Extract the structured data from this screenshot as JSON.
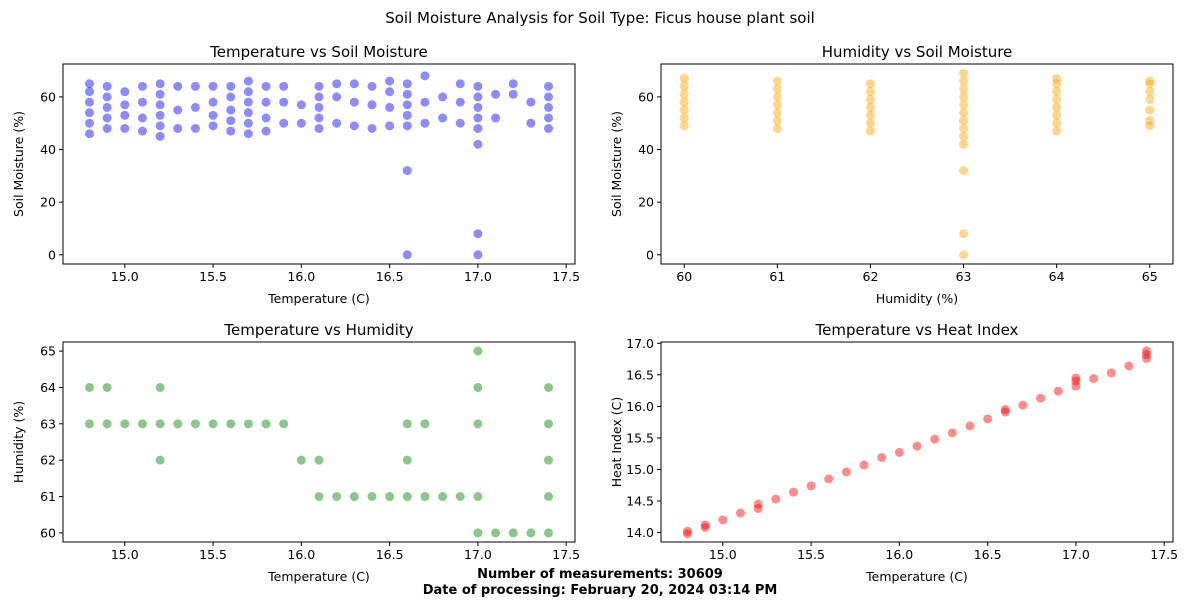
{
  "suptitle": "Soil Moisture Analysis for Soil Type: Ficus house plant soil",
  "footer": {
    "measurements": "Number of measurements: 30609",
    "date": "Date of processing: February 20, 2024 03:14 PM"
  },
  "chart_data": [
    {
      "type": "scatter",
      "title": "Temperature vs Soil Moisture",
      "xlabel": "Temperature (C)",
      "ylabel": "Soil Moisture (%)",
      "xlim": [
        14.65,
        17.55
      ],
      "ylim": [
        -3.5,
        72.5
      ],
      "xticks": [
        15.0,
        15.5,
        16.0,
        16.5,
        17.0,
        17.5
      ],
      "yticks": [
        0,
        20,
        40,
        60
      ],
      "tick_format": {
        "x": 1,
        "y": 0
      },
      "color": "#0000ff",
      "grid": false,
      "series": [
        {
          "points": [
            [
              14.8,
              46
            ],
            [
              14.8,
              50
            ],
            [
              14.8,
              54
            ],
            [
              14.8,
              58
            ],
            [
              14.8,
              62
            ],
            [
              14.8,
              65
            ],
            [
              14.9,
              48
            ],
            [
              14.9,
              52
            ],
            [
              14.9,
              56
            ],
            [
              14.9,
              60
            ],
            [
              14.9,
              64
            ],
            [
              15.0,
              48
            ],
            [
              15.0,
              53
            ],
            [
              15.0,
              57
            ],
            [
              15.0,
              62
            ],
            [
              15.1,
              47
            ],
            [
              15.1,
              52
            ],
            [
              15.1,
              58
            ],
            [
              15.1,
              64
            ],
            [
              15.2,
              45
            ],
            [
              15.2,
              49
            ],
            [
              15.2,
              53
            ],
            [
              15.2,
              57
            ],
            [
              15.2,
              61
            ],
            [
              15.2,
              65
            ],
            [
              15.3,
              48
            ],
            [
              15.3,
              55
            ],
            [
              15.3,
              64
            ],
            [
              15.4,
              48
            ],
            [
              15.4,
              56
            ],
            [
              15.4,
              64
            ],
            [
              15.5,
              49
            ],
            [
              15.5,
              53
            ],
            [
              15.5,
              58
            ],
            [
              15.5,
              64
            ],
            [
              15.6,
              47
            ],
            [
              15.6,
              51
            ],
            [
              15.6,
              55
            ],
            [
              15.6,
              60
            ],
            [
              15.6,
              64
            ],
            [
              15.7,
              46
            ],
            [
              15.7,
              50
            ],
            [
              15.7,
              54
            ],
            [
              15.7,
              58
            ],
            [
              15.7,
              62
            ],
            [
              15.7,
              66
            ],
            [
              15.8,
              47
            ],
            [
              15.8,
              52
            ],
            [
              15.8,
              58
            ],
            [
              15.8,
              64
            ],
            [
              15.9,
              50
            ],
            [
              15.9,
              58
            ],
            [
              15.9,
              64
            ],
            [
              16.0,
              50
            ],
            [
              16.0,
              57
            ],
            [
              16.1,
              48
            ],
            [
              16.1,
              52
            ],
            [
              16.1,
              56
            ],
            [
              16.1,
              60
            ],
            [
              16.1,
              64
            ],
            [
              16.2,
              50
            ],
            [
              16.2,
              60
            ],
            [
              16.2,
              65
            ],
            [
              16.3,
              49
            ],
            [
              16.3,
              58
            ],
            [
              16.3,
              65
            ],
            [
              16.4,
              48
            ],
            [
              16.4,
              57
            ],
            [
              16.4,
              64
            ],
            [
              16.5,
              49
            ],
            [
              16.5,
              56
            ],
            [
              16.5,
              62
            ],
            [
              16.5,
              66
            ],
            [
              16.6,
              49
            ],
            [
              16.6,
              53
            ],
            [
              16.6,
              57
            ],
            [
              16.6,
              61
            ],
            [
              16.6,
              65
            ],
            [
              16.6,
              32
            ],
            [
              16.6,
              0
            ],
            [
              16.7,
              50
            ],
            [
              16.7,
              58
            ],
            [
              16.7,
              68
            ],
            [
              16.8,
              52
            ],
            [
              16.8,
              60
            ],
            [
              16.9,
              50
            ],
            [
              16.9,
              58
            ],
            [
              16.9,
              65
            ],
            [
              17.0,
              48
            ],
            [
              17.0,
              52
            ],
            [
              17.0,
              56
            ],
            [
              17.0,
              60
            ],
            [
              17.0,
              64
            ],
            [
              17.0,
              42
            ],
            [
              17.0,
              8
            ],
            [
              17.0,
              0
            ],
            [
              17.1,
              52
            ],
            [
              17.1,
              61
            ],
            [
              17.2,
              61
            ],
            [
              17.2,
              65
            ],
            [
              17.3,
              50
            ],
            [
              17.3,
              58
            ],
            [
              17.4,
              48
            ],
            [
              17.4,
              52
            ],
            [
              17.4,
              56
            ],
            [
              17.4,
              60
            ],
            [
              17.4,
              64
            ]
          ]
        }
      ]
    },
    {
      "type": "scatter",
      "title": "Humidity vs Soil Moisture",
      "xlabel": "Humidity (%)",
      "ylabel": "Soil Moisture (%)",
      "xlim": [
        59.75,
        65.25
      ],
      "ylim": [
        -3.5,
        72.5
      ],
      "xticks": [
        60,
        61,
        62,
        63,
        64,
        65
      ],
      "yticks": [
        0,
        20,
        40,
        60
      ],
      "tick_format": {
        "x": 0,
        "y": 0
      },
      "color": "#ffa500",
      "grid": false,
      "series": [
        {
          "points": [
            [
              60,
              49
            ],
            [
              60,
              52
            ],
            [
              60,
              55
            ],
            [
              60,
              58
            ],
            [
              60,
              61
            ],
            [
              60,
              64
            ],
            [
              60,
              67
            ],
            [
              61,
              48
            ],
            [
              61,
              51
            ],
            [
              61,
              54
            ],
            [
              61,
              57
            ],
            [
              61,
              60
            ],
            [
              61,
              63
            ],
            [
              61,
              66
            ],
            [
              62,
              47
            ],
            [
              62,
              50
            ],
            [
              62,
              53
            ],
            [
              62,
              56
            ],
            [
              62,
              59
            ],
            [
              62,
              62
            ],
            [
              62,
              65
            ],
            [
              63,
              45
            ],
            [
              63,
              48
            ],
            [
              63,
              51
            ],
            [
              63,
              54
            ],
            [
              63,
              57
            ],
            [
              63,
              60
            ],
            [
              63,
              63
            ],
            [
              63,
              66
            ],
            [
              63,
              69
            ],
            [
              63,
              42
            ],
            [
              63,
              32
            ],
            [
              63,
              8
            ],
            [
              63,
              0
            ],
            [
              64,
              47
            ],
            [
              64,
              50
            ],
            [
              64,
              53
            ],
            [
              64,
              56
            ],
            [
              64,
              59
            ],
            [
              64,
              62
            ],
            [
              64,
              65
            ],
            [
              64,
              67
            ],
            [
              65,
              49
            ],
            [
              65,
              51
            ],
            [
              65,
              55
            ],
            [
              65,
              59
            ],
            [
              65,
              62
            ],
            [
              65,
              65
            ],
            [
              65,
              66
            ]
          ]
        }
      ]
    },
    {
      "type": "scatter",
      "title": "Temperature vs Humidity",
      "xlabel": "Temperature (C)",
      "ylabel": "Humidity (%)",
      "xlim": [
        14.65,
        17.55
      ],
      "ylim": [
        59.75,
        65.25
      ],
      "xticks": [
        15.0,
        15.5,
        16.0,
        16.5,
        17.0,
        17.5
      ],
      "yticks": [
        60,
        61,
        62,
        63,
        64,
        65
      ],
      "tick_format": {
        "x": 1,
        "y": 0
      },
      "color": "#008000",
      "grid": false,
      "series": [
        {
          "points": [
            [
              14.8,
              64
            ],
            [
              14.8,
              63
            ],
            [
              14.9,
              64
            ],
            [
              14.9,
              63
            ],
            [
              15.0,
              63
            ],
            [
              15.1,
              63
            ],
            [
              15.2,
              64
            ],
            [
              15.2,
              63
            ],
            [
              15.2,
              62
            ],
            [
              15.3,
              63
            ],
            [
              15.4,
              63
            ],
            [
              15.5,
              63
            ],
            [
              15.6,
              63
            ],
            [
              15.7,
              63
            ],
            [
              15.8,
              63
            ],
            [
              15.9,
              63
            ],
            [
              16.0,
              62
            ],
            [
              16.1,
              62
            ],
            [
              16.1,
              61
            ],
            [
              16.2,
              61
            ],
            [
              16.3,
              61
            ],
            [
              16.4,
              61
            ],
            [
              16.5,
              61
            ],
            [
              16.6,
              63
            ],
            [
              16.6,
              62
            ],
            [
              16.6,
              61
            ],
            [
              16.7,
              63
            ],
            [
              16.7,
              61
            ],
            [
              16.8,
              61
            ],
            [
              16.9,
              61
            ],
            [
              17.0,
              65
            ],
            [
              17.0,
              64
            ],
            [
              17.0,
              63
            ],
            [
              17.0,
              61
            ],
            [
              17.0,
              60
            ],
            [
              17.1,
              60
            ],
            [
              17.2,
              60
            ],
            [
              17.3,
              60
            ],
            [
              17.4,
              64
            ],
            [
              17.4,
              63
            ],
            [
              17.4,
              62
            ],
            [
              17.4,
              61
            ],
            [
              17.4,
              60
            ]
          ]
        }
      ]
    },
    {
      "type": "scatter",
      "title": "Temperature vs Heat Index",
      "xlabel": "Temperature (C)",
      "ylabel": "Heat Index (C)",
      "xlim": [
        14.65,
        17.55
      ],
      "ylim": [
        13.85,
        17.02
      ],
      "xticks": [
        15.0,
        15.5,
        16.0,
        16.5,
        17.0,
        17.5
      ],
      "yticks": [
        14.0,
        14.5,
        15.0,
        15.5,
        16.0,
        16.5,
        17.0
      ],
      "tick_format": {
        "x": 1,
        "y": 1
      },
      "color": "#ff0000",
      "grid": false,
      "series": [
        {
          "points": [
            [
              14.8,
              13.98
            ],
            [
              14.8,
              14.02
            ],
            [
              14.9,
              14.08
            ],
            [
              14.9,
              14.12
            ],
            [
              15.0,
              14.2
            ],
            [
              15.1,
              14.31
            ],
            [
              15.2,
              14.38
            ],
            [
              15.2,
              14.45
            ],
            [
              15.3,
              14.53
            ],
            [
              15.4,
              14.64
            ],
            [
              15.5,
              14.74
            ],
            [
              15.6,
              14.85
            ],
            [
              15.7,
              14.96
            ],
            [
              15.8,
              15.07
            ],
            [
              15.9,
              15.19
            ],
            [
              16.0,
              15.27
            ],
            [
              16.1,
              15.37
            ],
            [
              16.2,
              15.48
            ],
            [
              16.3,
              15.58
            ],
            [
              16.4,
              15.69
            ],
            [
              16.5,
              15.8
            ],
            [
              16.6,
              15.91
            ],
            [
              16.6,
              15.95
            ],
            [
              16.7,
              16.02
            ],
            [
              16.8,
              16.13
            ],
            [
              16.9,
              16.24
            ],
            [
              17.0,
              16.32
            ],
            [
              17.0,
              16.4
            ],
            [
              17.0,
              16.45
            ],
            [
              17.1,
              16.44
            ],
            [
              17.2,
              16.53
            ],
            [
              17.3,
              16.64
            ],
            [
              17.4,
              16.76
            ],
            [
              17.4,
              16.82
            ],
            [
              17.4,
              16.88
            ]
          ]
        }
      ]
    }
  ]
}
